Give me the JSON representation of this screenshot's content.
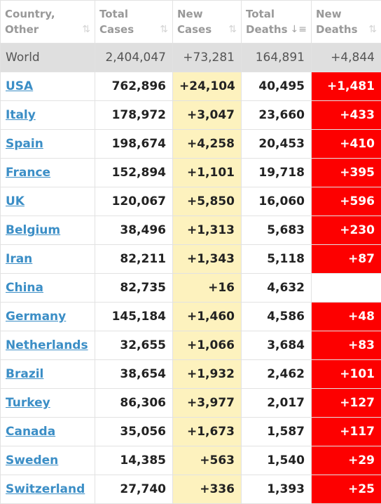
{
  "headers": [
    {
      "line1": "Country,",
      "line2": "Other",
      "icon": "sort-both-icon"
    },
    {
      "line1": "Total",
      "line2": "Cases",
      "icon": "sort-both-icon"
    },
    {
      "line1": "New",
      "line2": "Cases",
      "icon": "sort-both-icon"
    },
    {
      "line1": "Total",
      "line2": "Deaths",
      "icon": "sort-desc-icon"
    },
    {
      "line1": "New",
      "line2": "Deaths",
      "icon": "sort-both-icon"
    }
  ],
  "colors": {
    "new_cases_bg": "#fdf2be",
    "new_deaths_bg": "#fd0000",
    "world_row_bg": "#dfdfdf",
    "link": "#3b8ec6"
  },
  "world": {
    "country": "World",
    "total_cases": "2,404,047",
    "new_cases": "+73,281",
    "total_deaths": "164,891",
    "new_deaths": "+4,844"
  },
  "rows": [
    {
      "country": "USA",
      "total_cases": "762,896",
      "new_cases": "+24,104",
      "total_deaths": "40,495",
      "new_deaths": "+1,481"
    },
    {
      "country": "Italy",
      "total_cases": "178,972",
      "new_cases": "+3,047",
      "total_deaths": "23,660",
      "new_deaths": "+433"
    },
    {
      "country": "Spain",
      "total_cases": "198,674",
      "new_cases": "+4,258",
      "total_deaths": "20,453",
      "new_deaths": "+410"
    },
    {
      "country": "France",
      "total_cases": "152,894",
      "new_cases": "+1,101",
      "total_deaths": "19,718",
      "new_deaths": "+395"
    },
    {
      "country": "UK",
      "total_cases": "120,067",
      "new_cases": "+5,850",
      "total_deaths": "16,060",
      "new_deaths": "+596"
    },
    {
      "country": "Belgium",
      "total_cases": "38,496",
      "new_cases": "+1,313",
      "total_deaths": "5,683",
      "new_deaths": "+230"
    },
    {
      "country": "Iran",
      "total_cases": "82,211",
      "new_cases": "+1,343",
      "total_deaths": "5,118",
      "new_deaths": "+87"
    },
    {
      "country": "China",
      "total_cases": "82,735",
      "new_cases": "+16",
      "total_deaths": "4,632",
      "new_deaths": ""
    },
    {
      "country": "Germany",
      "total_cases": "145,184",
      "new_cases": "+1,460",
      "total_deaths": "4,586",
      "new_deaths": "+48"
    },
    {
      "country": "Netherlands",
      "total_cases": "32,655",
      "new_cases": "+1,066",
      "total_deaths": "3,684",
      "new_deaths": "+83"
    },
    {
      "country": "Brazil",
      "total_cases": "38,654",
      "new_cases": "+1,932",
      "total_deaths": "2,462",
      "new_deaths": "+101"
    },
    {
      "country": "Turkey",
      "total_cases": "86,306",
      "new_cases": "+3,977",
      "total_deaths": "2,017",
      "new_deaths": "+127"
    },
    {
      "country": "Canada",
      "total_cases": "35,056",
      "new_cases": "+1,673",
      "total_deaths": "1,587",
      "new_deaths": "+117"
    },
    {
      "country": "Sweden",
      "total_cases": "14,385",
      "new_cases": "+563",
      "total_deaths": "1,540",
      "new_deaths": "+29"
    },
    {
      "country": "Switzerland",
      "total_cases": "27,740",
      "new_cases": "+336",
      "total_deaths": "1,393",
      "new_deaths": "+25"
    }
  ]
}
